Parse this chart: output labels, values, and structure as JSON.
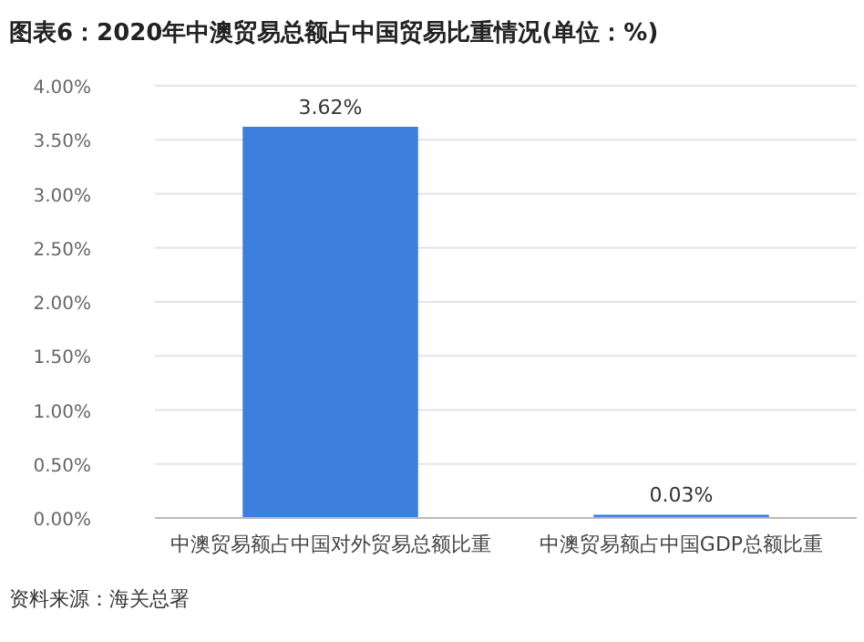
{
  "chart_data": {
    "type": "bar",
    "title": "图表6：2020年中澳贸易总额占中国贸易比重情况(单位：%)",
    "categories": [
      "中澳贸易额占中国对外贸易总额比重",
      "中澳贸易额占中国GDP总额比重"
    ],
    "values": [
      3.62,
      0.03
    ],
    "value_labels": [
      "3.62%",
      "0.03%"
    ],
    "color": "#3c7fdc",
    "ylim": [
      0,
      4
    ],
    "yticks": [
      {
        "value": 0,
        "label": "0.00%"
      },
      {
        "value": 0.5,
        "label": "0.50%"
      },
      {
        "value": 1,
        "label": "1.00%"
      },
      {
        "value": 1.5,
        "label": "1.50%"
      },
      {
        "value": 2,
        "label": "2.00%"
      },
      {
        "value": 2.5,
        "label": "2.50%"
      },
      {
        "value": 3,
        "label": "3.00%"
      },
      {
        "value": 3.5,
        "label": "3.50%"
      },
      {
        "value": 4,
        "label": "4.00%"
      }
    ],
    "grid": "y",
    "annotations": [
      "资料来源：海关总署"
    ]
  }
}
